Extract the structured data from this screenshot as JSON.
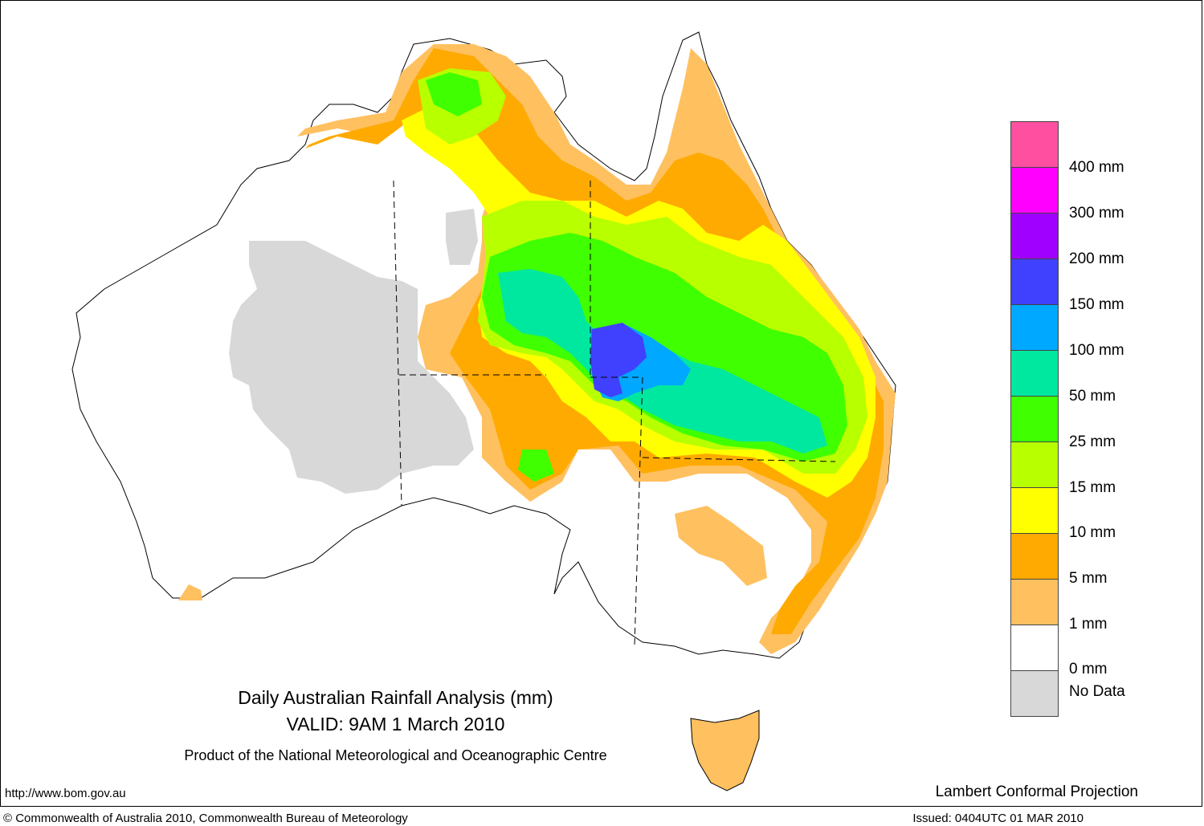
{
  "titles": {
    "main": "Daily Australian Rainfall Analysis (mm)",
    "valid": "VALID: 9AM  1 March 2010",
    "product": "Product of the National Meteorological and Oceanographic Centre"
  },
  "footer": {
    "url": "http://www.bom.gov.au",
    "projection": "Lambert Conformal Projection",
    "copyright": "© Commonwealth of Australia 2010, Commonwealth Bureau of Meteorology",
    "issued": "Issued: 0404UTC 01 MAR 2010"
  },
  "legend": {
    "swatches": [
      {
        "color": "#ff4fa0"
      },
      {
        "color": "#ff00ff"
      },
      {
        "color": "#a000ff"
      },
      {
        "color": "#4040ff"
      },
      {
        "color": "#00a8ff"
      },
      {
        "color": "#00e8a0"
      },
      {
        "color": "#40ff00"
      },
      {
        "color": "#b8ff00"
      },
      {
        "color": "#ffff00"
      },
      {
        "color": "#ffaa00"
      },
      {
        "color": "#ffc060"
      },
      {
        "color": "#ffffff"
      },
      {
        "color": "#d8d8d8"
      }
    ],
    "labels": [
      "400 mm",
      "300 mm",
      "200 mm",
      "150 mm",
      "100 mm",
      "50 mm",
      "25 mm",
      "15 mm",
      "10 mm",
      "5 mm",
      "1 mm",
      "0 mm",
      "No Data"
    ]
  }
}
